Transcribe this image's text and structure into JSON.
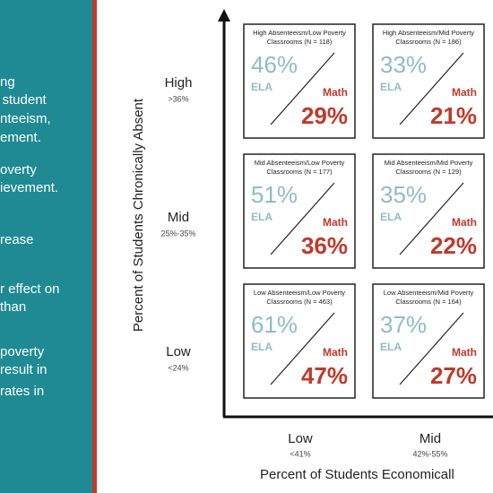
{
  "side_text": [
    "ng",
    "g student",
    "nteeism,",
    "ement.",
    "overty",
    "ievement.",
    "rease",
    "r effect on",
    "than",
    "poverty",
    "result in",
    "rates in"
  ],
  "y_axis": {
    "title": "Percent of Students Chronically Absent",
    "levels": [
      {
        "label": "High",
        "range": ">36%"
      },
      {
        "label": "Mid",
        "range": "25%-35%"
      },
      {
        "label": "Low",
        "range": "<24%"
      }
    ]
  },
  "x_axis": {
    "title": "Percent of Students Economicall",
    "levels": [
      {
        "label": "Low",
        "range": "<41%"
      },
      {
        "label": "Mid",
        "range": "42%-55%"
      }
    ]
  },
  "cells": [
    {
      "title": [
        "High Absenteeism/Low Poverty",
        "Classrooms (N = 118)"
      ],
      "ela_label": "ELA",
      "ela": "46%",
      "math_label": "Math",
      "math": "29%"
    },
    {
      "title": [
        "High Absenteeism/Mid Poverty",
        "Classrooms (N = 186)"
      ],
      "ela_label": "ELA",
      "ela": "33%",
      "math_label": "Math",
      "math": "21%"
    },
    {
      "title": [
        "Mid Absenteeism/Low Poverty",
        "Classrooms (N = 177)"
      ],
      "ela_label": "ELA",
      "ela": "51%",
      "math_label": "Math",
      "math": "36%"
    },
    {
      "title": [
        "Mid Absenteeism/Mid Poverty",
        "Classrooms (N = 129)"
      ],
      "ela_label": "ELA",
      "ela": "35%",
      "math_label": "Math",
      "math": "22%"
    },
    {
      "title": [
        "Low Absenteeism/Low Poverty",
        "Classrooms (N = 463)"
      ],
      "ela_label": "ELA",
      "ela": "61%",
      "math_label": "Math",
      "math": "47%"
    },
    {
      "title": [
        "Low Absenteeism/Mid Poverty",
        "Classrooms (N = 164)"
      ],
      "ela_label": "ELA",
      "ela": "37%",
      "math_label": "Math",
      "math": "27%"
    }
  ]
}
